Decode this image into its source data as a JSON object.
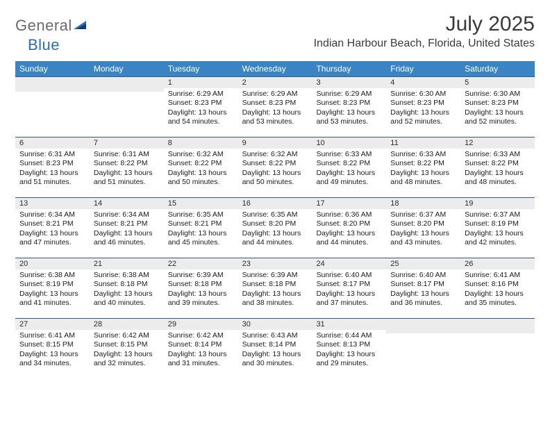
{
  "logo": {
    "part1": "General",
    "part2": "Blue"
  },
  "title": "July 2025",
  "location": "Indian Harbour Beach, Florida, United States",
  "colors": {
    "header_bg": "#3b84c4",
    "header_text": "#ffffff",
    "daynum_bg": "#ececec",
    "week_border": "#2d5e8a",
    "logo_gray": "#6a6a6a",
    "logo_blue": "#2a6db8"
  },
  "day_names": [
    "Sunday",
    "Monday",
    "Tuesday",
    "Wednesday",
    "Thursday",
    "Friday",
    "Saturday"
  ],
  "weeks": [
    [
      null,
      null,
      {
        "d": "1",
        "sr": "6:29 AM",
        "ss": "8:23 PM",
        "dl": "13 hours and 54 minutes."
      },
      {
        "d": "2",
        "sr": "6:29 AM",
        "ss": "8:23 PM",
        "dl": "13 hours and 53 minutes."
      },
      {
        "d": "3",
        "sr": "6:29 AM",
        "ss": "8:23 PM",
        "dl": "13 hours and 53 minutes."
      },
      {
        "d": "4",
        "sr": "6:30 AM",
        "ss": "8:23 PM",
        "dl": "13 hours and 52 minutes."
      },
      {
        "d": "5",
        "sr": "6:30 AM",
        "ss": "8:23 PM",
        "dl": "13 hours and 52 minutes."
      }
    ],
    [
      {
        "d": "6",
        "sr": "6:31 AM",
        "ss": "8:23 PM",
        "dl": "13 hours and 51 minutes."
      },
      {
        "d": "7",
        "sr": "6:31 AM",
        "ss": "8:22 PM",
        "dl": "13 hours and 51 minutes."
      },
      {
        "d": "8",
        "sr": "6:32 AM",
        "ss": "8:22 PM",
        "dl": "13 hours and 50 minutes."
      },
      {
        "d": "9",
        "sr": "6:32 AM",
        "ss": "8:22 PM",
        "dl": "13 hours and 50 minutes."
      },
      {
        "d": "10",
        "sr": "6:33 AM",
        "ss": "8:22 PM",
        "dl": "13 hours and 49 minutes."
      },
      {
        "d": "11",
        "sr": "6:33 AM",
        "ss": "8:22 PM",
        "dl": "13 hours and 48 minutes."
      },
      {
        "d": "12",
        "sr": "6:33 AM",
        "ss": "8:22 PM",
        "dl": "13 hours and 48 minutes."
      }
    ],
    [
      {
        "d": "13",
        "sr": "6:34 AM",
        "ss": "8:21 PM",
        "dl": "13 hours and 47 minutes."
      },
      {
        "d": "14",
        "sr": "6:34 AM",
        "ss": "8:21 PM",
        "dl": "13 hours and 46 minutes."
      },
      {
        "d": "15",
        "sr": "6:35 AM",
        "ss": "8:21 PM",
        "dl": "13 hours and 45 minutes."
      },
      {
        "d": "16",
        "sr": "6:35 AM",
        "ss": "8:20 PM",
        "dl": "13 hours and 44 minutes."
      },
      {
        "d": "17",
        "sr": "6:36 AM",
        "ss": "8:20 PM",
        "dl": "13 hours and 44 minutes."
      },
      {
        "d": "18",
        "sr": "6:37 AM",
        "ss": "8:20 PM",
        "dl": "13 hours and 43 minutes."
      },
      {
        "d": "19",
        "sr": "6:37 AM",
        "ss": "8:19 PM",
        "dl": "13 hours and 42 minutes."
      }
    ],
    [
      {
        "d": "20",
        "sr": "6:38 AM",
        "ss": "8:19 PM",
        "dl": "13 hours and 41 minutes."
      },
      {
        "d": "21",
        "sr": "6:38 AM",
        "ss": "8:18 PM",
        "dl": "13 hours and 40 minutes."
      },
      {
        "d": "22",
        "sr": "6:39 AM",
        "ss": "8:18 PM",
        "dl": "13 hours and 39 minutes."
      },
      {
        "d": "23",
        "sr": "6:39 AM",
        "ss": "8:18 PM",
        "dl": "13 hours and 38 minutes."
      },
      {
        "d": "24",
        "sr": "6:40 AM",
        "ss": "8:17 PM",
        "dl": "13 hours and 37 minutes."
      },
      {
        "d": "25",
        "sr": "6:40 AM",
        "ss": "8:17 PM",
        "dl": "13 hours and 36 minutes."
      },
      {
        "d": "26",
        "sr": "6:41 AM",
        "ss": "8:16 PM",
        "dl": "13 hours and 35 minutes."
      }
    ],
    [
      {
        "d": "27",
        "sr": "6:41 AM",
        "ss": "8:15 PM",
        "dl": "13 hours and 34 minutes."
      },
      {
        "d": "28",
        "sr": "6:42 AM",
        "ss": "8:15 PM",
        "dl": "13 hours and 32 minutes."
      },
      {
        "d": "29",
        "sr": "6:42 AM",
        "ss": "8:14 PM",
        "dl": "13 hours and 31 minutes."
      },
      {
        "d": "30",
        "sr": "6:43 AM",
        "ss": "8:14 PM",
        "dl": "13 hours and 30 minutes."
      },
      {
        "d": "31",
        "sr": "6:44 AM",
        "ss": "8:13 PM",
        "dl": "13 hours and 29 minutes."
      },
      null,
      null
    ]
  ],
  "labels": {
    "sunrise": "Sunrise:",
    "sunset": "Sunset:",
    "daylight": "Daylight:"
  }
}
